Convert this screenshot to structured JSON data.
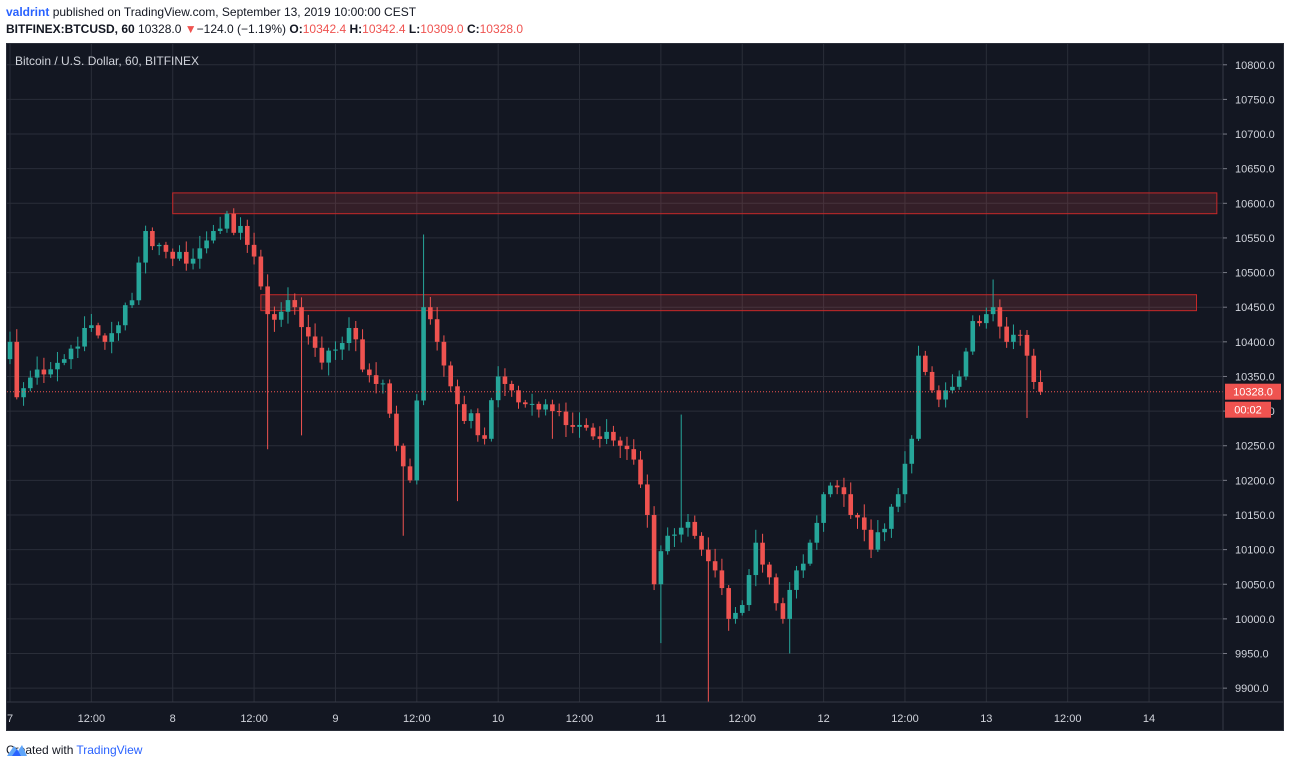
{
  "header": {
    "author": "valdrint",
    "published_text": "published on TradingView.com, September 13, 2019 10:00:00 CEST",
    "symbol": "BITFINEX:BTCUSD, 60",
    "last": "10328.0",
    "change_arrow": "▼",
    "change": "−124.0 (−1.19%)",
    "o_label": "O:",
    "o_value": "10342.4",
    "h_label": "H:",
    "h_value": "10342.4",
    "l_label": "L:",
    "l_value": "10309.0",
    "c_label": "C:",
    "c_value": "10328.0"
  },
  "footer": {
    "created_with": "Created with",
    "brand": "TradingView"
  },
  "chart_data": {
    "type": "candlestick",
    "title": "Bitcoin / U.S. Dollar, 60, BITFINEX",
    "ylim": [
      9880,
      10830
    ],
    "y_ticks": [
      9900,
      9950,
      10000,
      10050,
      10100,
      10150,
      10200,
      10250,
      10300,
      10350,
      10400,
      10450,
      10500,
      10550,
      10600,
      10650,
      10700,
      10750,
      10800
    ],
    "x_ticks": [
      {
        "label": "7",
        "hour": 0
      },
      {
        "label": "12:00",
        "hour": 12
      },
      {
        "label": "8",
        "hour": 24
      },
      {
        "label": "12:00",
        "hour": 36
      },
      {
        "label": "9",
        "hour": 48
      },
      {
        "label": "12:00",
        "hour": 60
      },
      {
        "label": "10",
        "hour": 72
      },
      {
        "label": "12:00",
        "hour": 84
      },
      {
        "label": "11",
        "hour": 96
      },
      {
        "label": "12:00",
        "hour": 108
      },
      {
        "label": "12",
        "hour": 120
      },
      {
        "label": "12:00",
        "hour": 132
      },
      {
        "label": "13",
        "hour": 144
      },
      {
        "label": "12:00",
        "hour": 156
      },
      {
        "label": "14",
        "hour": 168
      }
    ],
    "current_price": 10328.0,
    "current_price_label": "10328.0",
    "countdown_label": "00:02",
    "grid": true,
    "colors": {
      "up": "#26a69a",
      "down": "#ef5350",
      "background": "#131722",
      "grid": "#2a2e39",
      "text": "#d1d4dc"
    },
    "zones": [
      {
        "start_hour": 24,
        "end_hour": 178,
        "low": 10585,
        "high": 10615
      },
      {
        "start_hour": 37,
        "end_hour": 175,
        "low": 10445,
        "high": 10468
      }
    ],
    "anchors": [
      {
        "hour": 0,
        "price": 10400
      },
      {
        "hour": 1,
        "price": 10320
      },
      {
        "hour": 4,
        "price": 10360
      },
      {
        "hour": 8,
        "price": 10375
      },
      {
        "hour": 11,
        "price": 10420
      },
      {
        "hour": 14,
        "price": 10400
      },
      {
        "hour": 18,
        "price": 10460
      },
      {
        "hour": 20,
        "price": 10560
      },
      {
        "hour": 23,
        "price": 10530
      },
      {
        "hour": 27,
        "price": 10520
      },
      {
        "hour": 30,
        "price": 10560
      },
      {
        "hour": 32,
        "price": 10585
      },
      {
        "hour": 35,
        "price": 10540
      },
      {
        "hour": 37,
        "price": 10480
      },
      {
        "hour": 38,
        "price": 10440
      },
      {
        "hour": 42,
        "price": 10450
      },
      {
        "hour": 46,
        "price": 10370
      },
      {
        "hour": 50,
        "price": 10420
      },
      {
        "hour": 52,
        "price": 10360
      },
      {
        "hour": 55,
        "price": 10340
      },
      {
        "hour": 57,
        "price": 10250
      },
      {
        "hour": 59,
        "price": 10200
      },
      {
        "hour": 61,
        "price": 10450
      },
      {
        "hour": 63,
        "price": 10400
      },
      {
        "hour": 66,
        "price": 10310
      },
      {
        "hour": 70,
        "price": 10260
      },
      {
        "hour": 72,
        "price": 10350
      },
      {
        "hour": 74,
        "price": 10330
      },
      {
        "hour": 76,
        "price": 10310
      },
      {
        "hour": 80,
        "price": 10300
      },
      {
        "hour": 84,
        "price": 10280
      },
      {
        "hour": 88,
        "price": 10270
      },
      {
        "hour": 90,
        "price": 10250
      },
      {
        "hour": 92,
        "price": 10230
      },
      {
        "hour": 94,
        "price": 10150
      },
      {
        "hour": 95,
        "price": 10050
      },
      {
        "hour": 97,
        "price": 10120
      },
      {
        "hour": 100,
        "price": 10140
      },
      {
        "hour": 102,
        "price": 10100
      },
      {
        "hour": 104,
        "price": 10070
      },
      {
        "hour": 106,
        "price": 10000
      },
      {
        "hour": 108,
        "price": 10020
      },
      {
        "hour": 110,
        "price": 10110
      },
      {
        "hour": 112,
        "price": 10060
      },
      {
        "hour": 114,
        "price": 10000
      },
      {
        "hour": 116,
        "price": 10070
      },
      {
        "hour": 118,
        "price": 10110
      },
      {
        "hour": 120,
        "price": 10180
      },
      {
        "hour": 122,
        "price": 10190
      },
      {
        "hour": 124,
        "price": 10150
      },
      {
        "hour": 127,
        "price": 10100
      },
      {
        "hour": 129,
        "price": 10130
      },
      {
        "hour": 131,
        "price": 10180
      },
      {
        "hour": 133,
        "price": 10260
      },
      {
        "hour": 134,
        "price": 10380
      },
      {
        "hour": 136,
        "price": 10330
      },
      {
        "hour": 138,
        "price": 10330
      },
      {
        "hour": 140,
        "price": 10350
      },
      {
        "hour": 142,
        "price": 10430
      },
      {
        "hour": 144,
        "price": 10440
      },
      {
        "hour": 145,
        "price": 10450
      },
      {
        "hour": 147,
        "price": 10400
      },
      {
        "hour": 149,
        "price": 10410
      },
      {
        "hour": 150,
        "price": 10380
      },
      {
        "hour": 151,
        "price": 10342
      },
      {
        "hour": 152,
        "price": 10328
      }
    ],
    "wick_extremes": [
      {
        "hour": 38,
        "price": 10245
      },
      {
        "hour": 43,
        "price": 10265
      },
      {
        "hour": 58,
        "price": 10120
      },
      {
        "hour": 61,
        "price": 10555
      },
      {
        "hour": 66,
        "price": 10170
      },
      {
        "hour": 80,
        "price": 10260
      },
      {
        "hour": 96,
        "price": 9965
      },
      {
        "hour": 99,
        "price": 10295
      },
      {
        "hour": 103,
        "price": 9880
      },
      {
        "hour": 115,
        "price": 9950
      },
      {
        "hour": 145,
        "price": 10490
      },
      {
        "hour": 150,
        "price": 10290
      }
    ]
  }
}
